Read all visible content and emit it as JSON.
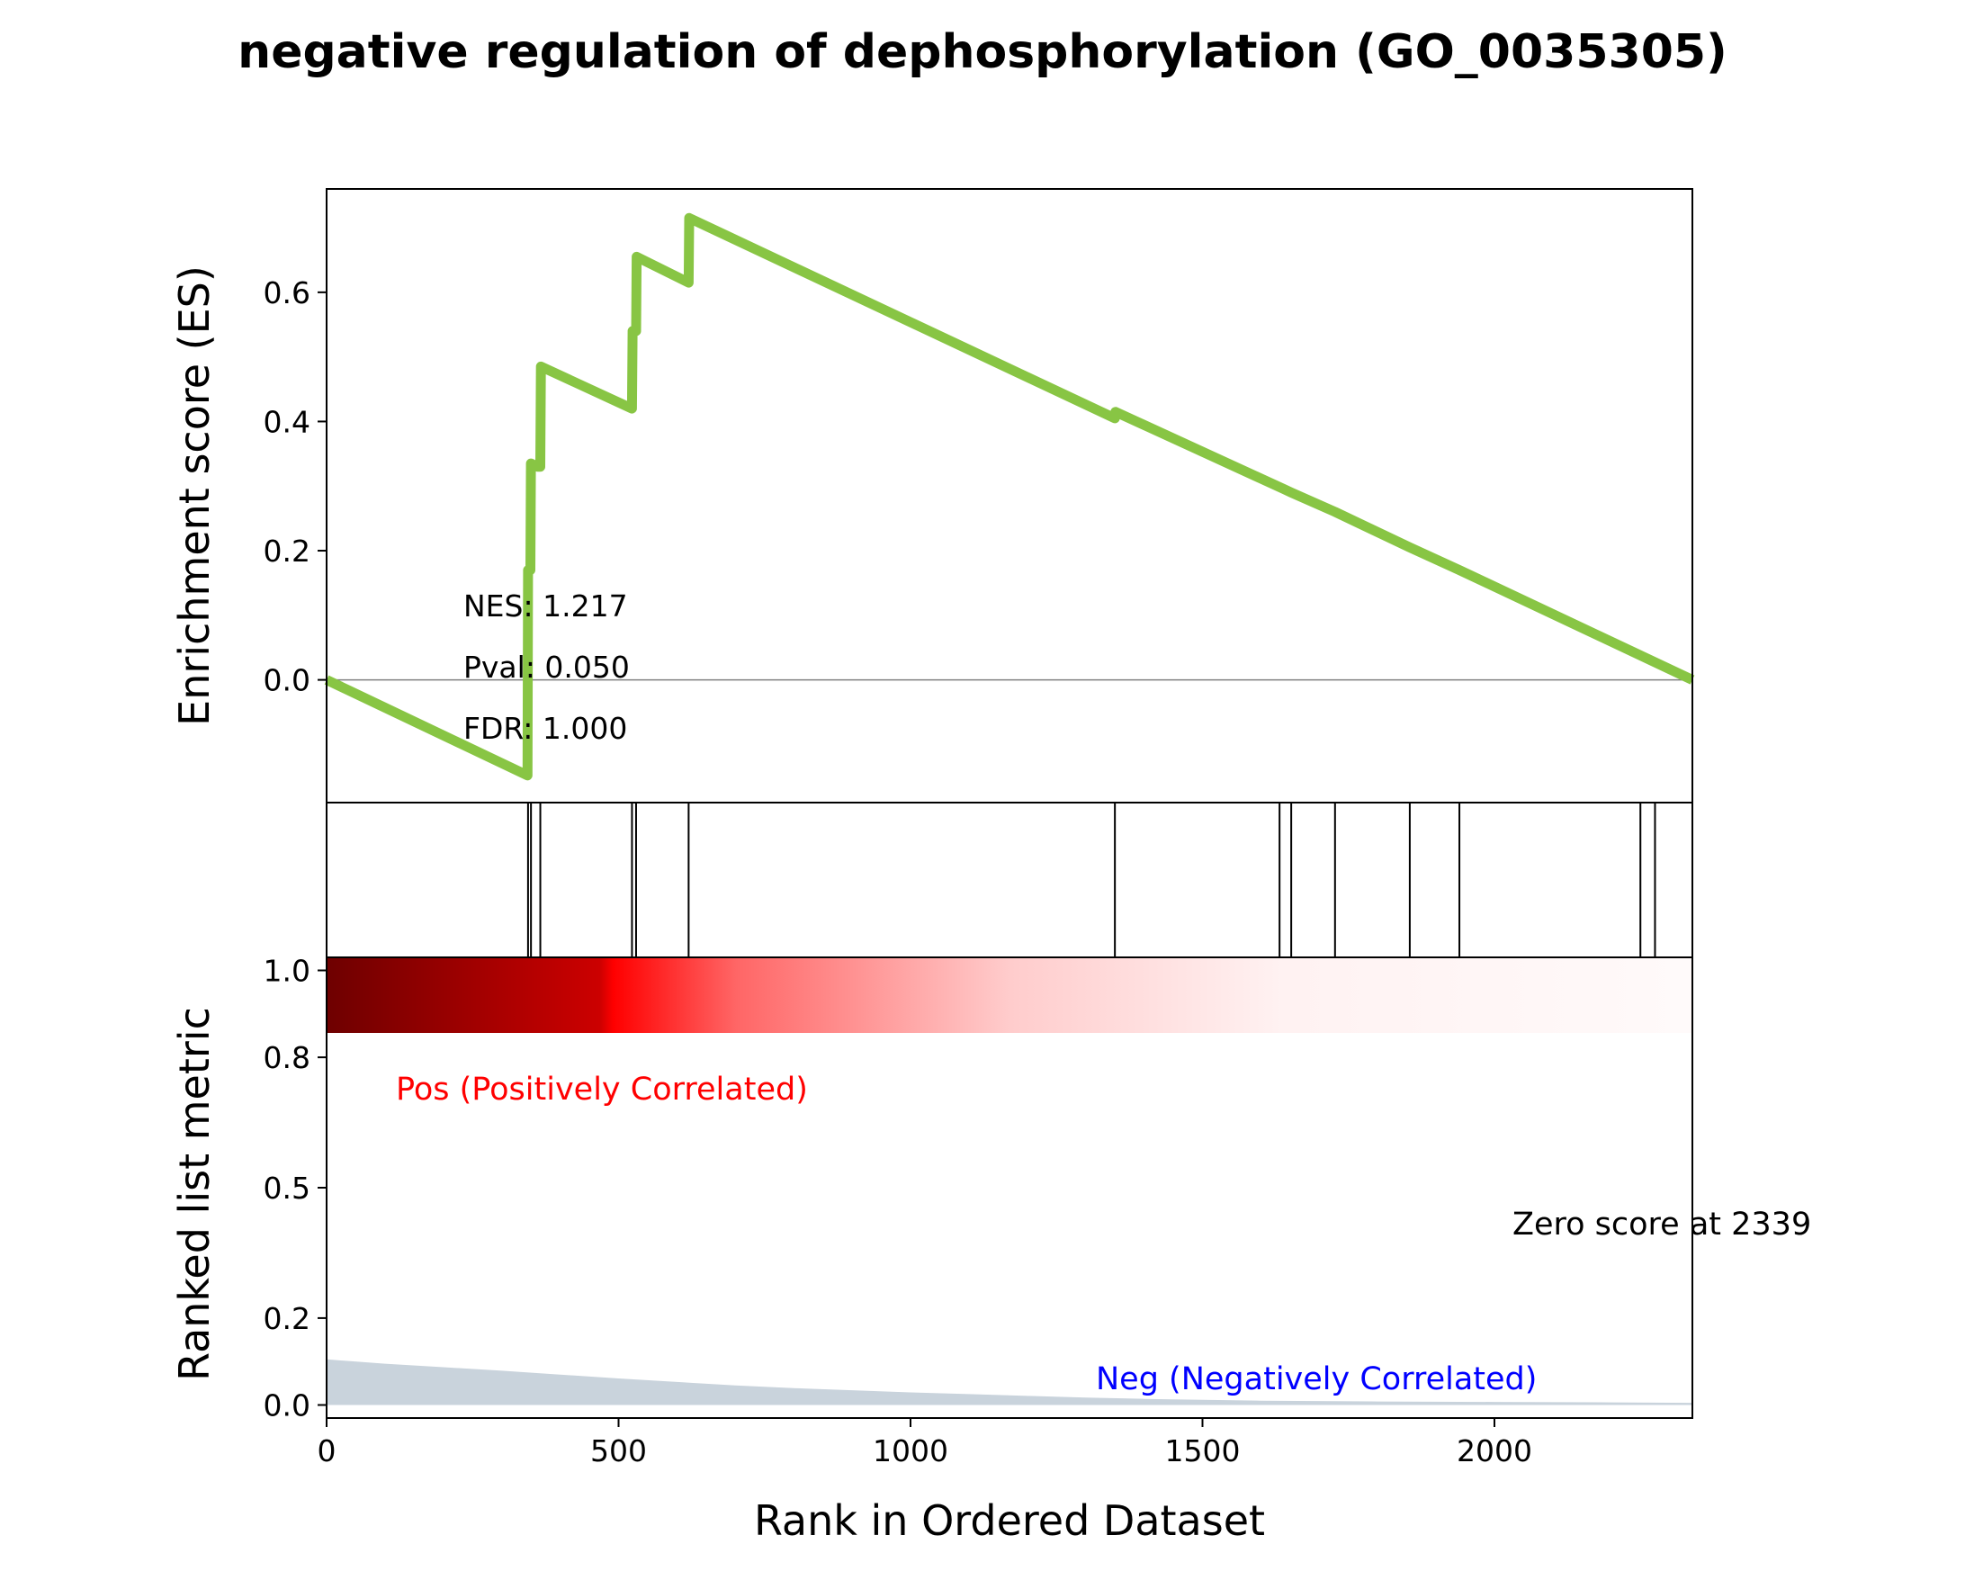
{
  "chart_data": {
    "type": "line",
    "title": "negative regulation of dephosphorylation (GO_0035305)",
    "xlabel": "Rank in Ordered Dataset",
    "x_max": 2339,
    "xlim": [
      0,
      2339
    ],
    "x_ticks": [
      "0",
      "500",
      "1000",
      "1500",
      "2000"
    ],
    "x_tick_values": [
      0,
      500,
      1000,
      1500,
      2000
    ],
    "es_panel": {
      "ylabel": "Enrichment score (ES)",
      "ylim": [
        -0.19,
        0.76
      ],
      "y_ticks": [
        "0.0",
        "0.2",
        "0.4",
        "0.6"
      ],
      "y_tick_values": [
        0.0,
        0.2,
        0.4,
        0.6
      ],
      "line_color": "#88c544",
      "stats": [
        "NES: 1.217",
        "Pval: 0.050",
        "FDR: 1.000"
      ],
      "es_curve": [
        [
          0,
          0.0
        ],
        [
          344,
          -0.148
        ],
        [
          345,
          0.17
        ],
        [
          349,
          0.17
        ],
        [
          350,
          0.335
        ],
        [
          361,
          0.33
        ],
        [
          366,
          0.33
        ],
        [
          367,
          0.485
        ],
        [
          523,
          0.42
        ],
        [
          524,
          0.54
        ],
        [
          530,
          0.54
        ],
        [
          531,
          0.655
        ],
        [
          620,
          0.615
        ],
        [
          621,
          0.715
        ],
        [
          1350,
          0.405
        ],
        [
          1351,
          0.415
        ],
        [
          1640,
          0.295
        ],
        [
          1652,
          0.29
        ],
        [
          1727,
          0.26
        ],
        [
          1855,
          0.205
        ],
        [
          1940,
          0.17
        ],
        [
          2339,
          0.0
        ]
      ]
    },
    "hit_positions": [
      345,
      350,
      366,
      523,
      530,
      620,
      1350,
      1632,
      1652,
      1727,
      1855,
      1940,
      2250,
      2275
    ],
    "gradient_colors": [
      "#6e0000",
      "#cc0000",
      "#ff0000",
      "#ff6666",
      "#ffcccc",
      "#fff2f2",
      "#fffafa"
    ],
    "metric_panel": {
      "ylabel": "Ranked list metric",
      "ylim": [
        -0.03,
        1.03
      ],
      "y_ticks": [
        "0.0",
        "0.2",
        "0.5",
        "0.8",
        "1.0"
      ],
      "y_tick_values": [
        0.0,
        0.2,
        0.5,
        0.8,
        1.0
      ],
      "fill_color": "#c9d3dc",
      "metric_curve": [
        [
          0,
          0.105
        ],
        [
          100,
          0.095
        ],
        [
          200,
          0.087
        ],
        [
          300,
          0.079
        ],
        [
          400,
          0.07
        ],
        [
          500,
          0.061
        ],
        [
          600,
          0.053
        ],
        [
          700,
          0.045
        ],
        [
          800,
          0.039
        ],
        [
          900,
          0.034
        ],
        [
          1000,
          0.029
        ],
        [
          1100,
          0.025
        ],
        [
          1200,
          0.021
        ],
        [
          1300,
          0.017
        ],
        [
          1400,
          0.014
        ],
        [
          1500,
          0.012
        ],
        [
          1600,
          0.01
        ],
        [
          1800,
          0.008
        ],
        [
          2000,
          0.007
        ],
        [
          2200,
          0.006
        ],
        [
          2339,
          0.005
        ]
      ],
      "pos_label": "Pos (Positively Correlated)",
      "pos_color": "#ff0000",
      "neg_label": "Neg (Negatively Correlated)",
      "neg_color": "#0000ff",
      "zero_label": "Zero score at 2339"
    }
  }
}
